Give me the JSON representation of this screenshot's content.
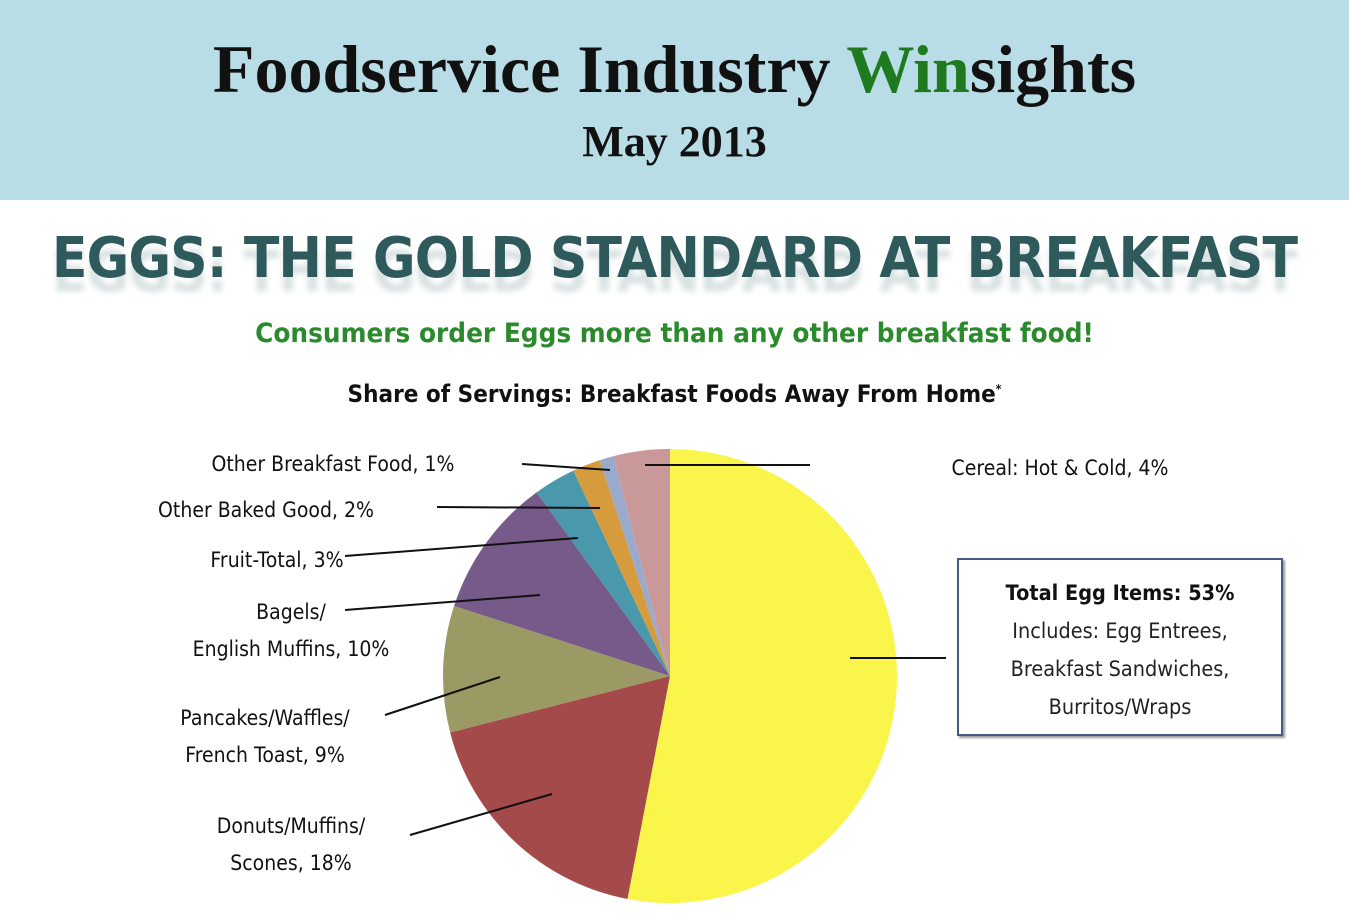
{
  "header": {
    "title_part1": "Foodservice Industry ",
    "title_highlight": "Win",
    "title_part2": "sights",
    "date": "May 2013"
  },
  "main_title": "EGGS: THE GOLD STANDARD AT BREAKFAST",
  "subtitle": "Consumers order Eggs more than any other breakfast food!",
  "chart_data": {
    "type": "pie",
    "title": "Share of Servings: Breakfast Foods Away From Home",
    "title_marker": "*",
    "slices": [
      {
        "name": "Total Egg Items",
        "value": 53,
        "color": "#f9f54a",
        "label": "Total Egg Items: 53%",
        "details": [
          "Includes: Egg Entrees,",
          "Breakfast Sandwiches,",
          "Burritos/Wraps"
        ]
      },
      {
        "name": "Donuts/Muffins/Scones",
        "value": 18,
        "color": "#a54a4a",
        "label_lines": [
          "Donuts/Muffins/",
          "Scones, 18%"
        ]
      },
      {
        "name": "Pancakes/Waffles/French Toast",
        "value": 9,
        "color": "#9b9a64",
        "label_lines": [
          "Pancakes/Waffles/",
          "French Toast, 9%"
        ]
      },
      {
        "name": "Bagels/English Muffins",
        "value": 10,
        "color": "#765a8a",
        "label_lines": [
          "Bagels/",
          "English Muffins, 10%"
        ]
      },
      {
        "name": "Fruit-Total",
        "value": 3,
        "color": "#4a98ac",
        "label_lines": [
          "Fruit-Total, 3%"
        ]
      },
      {
        "name": "Other Baked Good",
        "value": 2,
        "color": "#d59b3c",
        "label_lines": [
          "Other Baked Good, 2%"
        ]
      },
      {
        "name": "Other Breakfast Food",
        "value": 1,
        "color": "#9aaacc",
        "label_lines": [
          "Other Breakfast Food, 1%"
        ]
      },
      {
        "name": "Cereal: Hot & Cold",
        "value": 4,
        "color": "#c99898",
        "label_lines": [
          "Cereal: Hot & Cold, 4%"
        ]
      }
    ]
  }
}
